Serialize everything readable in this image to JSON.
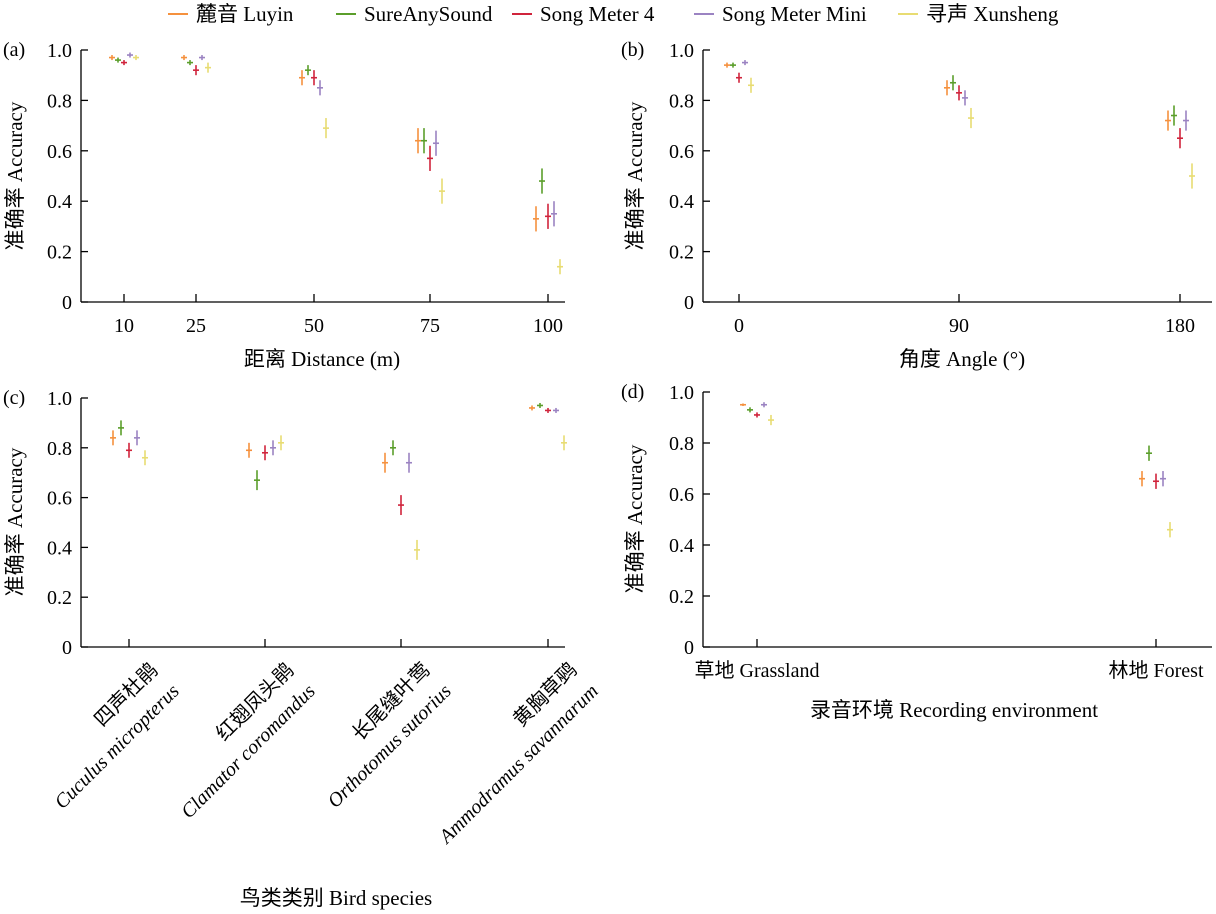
{
  "legend": [
    {
      "name": "麓音 Luyin",
      "color": "#f5913e"
    },
    {
      "name": "SureAnySound",
      "color": "#5b9e2b"
    },
    {
      "name": "Song Meter 4",
      "color": "#d0243c"
    },
    {
      "name": "Song Meter Mini",
      "color": "#9b83c2"
    },
    {
      "name": "寻声 Xunsheng",
      "color": "#e8dc72"
    }
  ],
  "chart_data": [
    {
      "panel_label": "(a)",
      "type": "scatter",
      "title": "",
      "ylabel": "准确率 Accuracy",
      "xlabel": "距离 Distance (m)",
      "categories": [
        "10",
        "25",
        "50",
        "75",
        "100"
      ],
      "ylim": [
        0,
        1.0
      ],
      "yticks": [
        "0",
        "0.2",
        "0.4",
        "0.6",
        "0.8",
        "1.0"
      ],
      "error_bars": true,
      "series": [
        {
          "name": "麓音 Luyin",
          "values": [
            0.97,
            0.97,
            0.89,
            0.64,
            0.33
          ],
          "err": [
            0.01,
            0.01,
            0.03,
            0.05,
            0.05
          ]
        },
        {
          "name": "SureAnySound",
          "values": [
            0.96,
            0.95,
            0.92,
            0.64,
            0.48
          ],
          "err": [
            0.01,
            0.01,
            0.02,
            0.05,
            0.05
          ]
        },
        {
          "name": "Song Meter 4",
          "values": [
            0.95,
            0.92,
            0.89,
            0.57,
            0.34
          ],
          "err": [
            0.01,
            0.02,
            0.03,
            0.05,
            0.05
          ]
        },
        {
          "name": "Song Meter Mini",
          "values": [
            0.98,
            0.97,
            0.85,
            0.63,
            0.35
          ],
          "err": [
            0.01,
            0.01,
            0.03,
            0.05,
            0.05
          ]
        },
        {
          "name": "寻声 Xunsheng",
          "values": [
            0.97,
            0.93,
            0.69,
            0.44,
            0.14
          ],
          "err": [
            0.01,
            0.02,
            0.04,
            0.05,
            0.03
          ]
        }
      ]
    },
    {
      "panel_label": "(b)",
      "type": "scatter",
      "title": "",
      "ylabel": "准确率 Accuracy",
      "xlabel": "角度 Angle (°)",
      "categories": [
        "0",
        "90",
        "180"
      ],
      "ylim": [
        0,
        1.0
      ],
      "yticks": [
        "0",
        "0.2",
        "0.4",
        "0.6",
        "0.8",
        "1.0"
      ],
      "error_bars": true,
      "series": [
        {
          "name": "麓音 Luyin",
          "values": [
            0.94,
            0.85,
            0.72
          ],
          "err": [
            0.01,
            0.03,
            0.04
          ]
        },
        {
          "name": "SureAnySound",
          "values": [
            0.94,
            0.87,
            0.74
          ],
          "err": [
            0.01,
            0.03,
            0.04
          ]
        },
        {
          "name": "Song Meter 4",
          "values": [
            0.89,
            0.83,
            0.65
          ],
          "err": [
            0.02,
            0.03,
            0.04
          ]
        },
        {
          "name": "Song Meter Mini",
          "values": [
            0.95,
            0.81,
            0.72
          ],
          "err": [
            0.01,
            0.03,
            0.04
          ]
        },
        {
          "name": "寻声 Xunsheng",
          "values": [
            0.86,
            0.73,
            0.5
          ],
          "err": [
            0.03,
            0.04,
            0.05
          ]
        }
      ]
    },
    {
      "panel_label": "(c)",
      "type": "scatter",
      "title": "",
      "ylabel": "准确率 Accuracy",
      "xlabel": "鸟类类别 Bird species",
      "categories": [
        {
          "cn": "四声杜鹃",
          "latin": "Cuculus micropterus"
        },
        {
          "cn": "红翅凤头鹃",
          "latin": "Clamator coromandus"
        },
        {
          "cn": "长尾缝叶莺",
          "latin": "Orthotomus sutorius"
        },
        {
          "cn": "黄胸草鹀",
          "latin": "Ammodramus savannarum"
        }
      ],
      "ylim": [
        0,
        1.0
      ],
      "yticks": [
        "0",
        "0.2",
        "0.4",
        "0.6",
        "0.8",
        "1.0"
      ],
      "error_bars": true,
      "series": [
        {
          "name": "麓音 Luyin",
          "values": [
            0.84,
            0.79,
            0.74,
            0.96
          ],
          "err": [
            0.03,
            0.03,
            0.04,
            0.01
          ]
        },
        {
          "name": "SureAnySound",
          "values": [
            0.88,
            0.67,
            0.8,
            0.97
          ],
          "err": [
            0.03,
            0.04,
            0.03,
            0.01
          ]
        },
        {
          "name": "Song Meter 4",
          "values": [
            0.79,
            0.78,
            0.57,
            0.95
          ],
          "err": [
            0.03,
            0.03,
            0.04,
            0.01
          ]
        },
        {
          "name": "Song Meter Mini",
          "values": [
            0.84,
            0.8,
            0.74,
            0.95
          ],
          "err": [
            0.03,
            0.03,
            0.04,
            0.01
          ]
        },
        {
          "name": "寻声 Xunsheng",
          "values": [
            0.76,
            0.82,
            0.39,
            0.82
          ],
          "err": [
            0.03,
            0.03,
            0.04,
            0.03
          ]
        }
      ]
    },
    {
      "panel_label": "(d)",
      "type": "scatter",
      "title": "",
      "ylabel": "准确率 Accuracy",
      "xlabel": "录音环境 Recording environment",
      "categories": [
        "草地 Grassland",
        "林地 Forest"
      ],
      "ylim": [
        0,
        1.0
      ],
      "yticks": [
        "0",
        "0.2",
        "0.4",
        "0.6",
        "0.8",
        "1.0"
      ],
      "error_bars": true,
      "series": [
        {
          "name": "麓音 Luyin",
          "values": [
            0.95,
            0.66
          ],
          "err": [
            0.005,
            0.03
          ]
        },
        {
          "name": "SureAnySound",
          "values": [
            0.93,
            0.76
          ],
          "err": [
            0.01,
            0.03
          ]
        },
        {
          "name": "Song Meter 4",
          "values": [
            0.91,
            0.65
          ],
          "err": [
            0.01,
            0.03
          ]
        },
        {
          "name": "Song Meter Mini",
          "values": [
            0.95,
            0.66
          ],
          "err": [
            0.01,
            0.03
          ]
        },
        {
          "name": "寻声 Xunsheng",
          "values": [
            0.89,
            0.46
          ],
          "err": [
            0.02,
            0.03
          ]
        }
      ]
    }
  ]
}
